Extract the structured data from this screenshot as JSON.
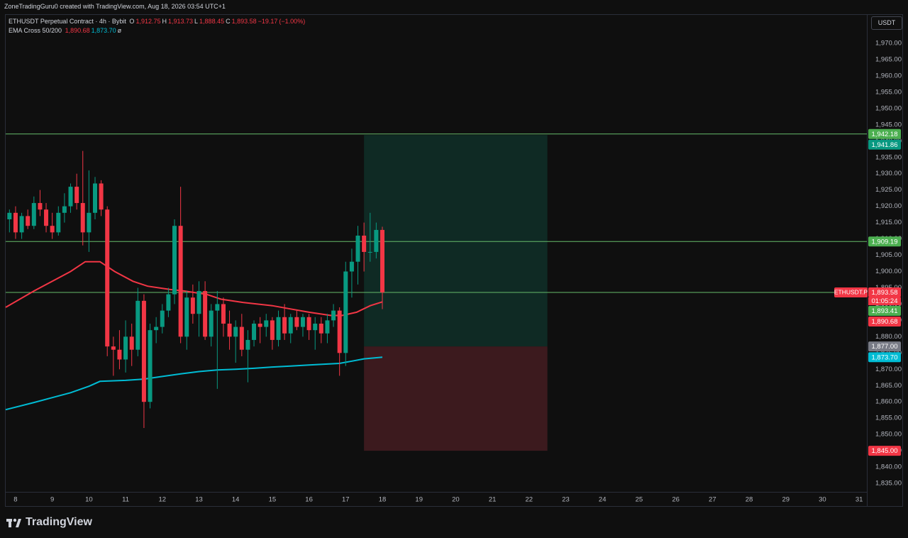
{
  "chart_data": {
    "type": "candlestick",
    "header": "ZoneTradingGuru0 created with TradingView.com, Aug 18, 2026 03:54 UTC+1",
    "symbol": "ETHUSDT Perpetual Contract · 4h · Bybit",
    "ohlc": [
      {
        "key": "O",
        "value": 1912.75,
        "label": "1,912.75"
      },
      {
        "key": "H",
        "value": 1913.73,
        "label": "1,913.73"
      },
      {
        "key": "L",
        "value": 1888.45,
        "label": "1,888.45"
      },
      {
        "key": "C",
        "value": 1893.58,
        "label": "1,893.58"
      }
    ],
    "change": {
      "value": -19.17,
      "label": "−19.17"
    },
    "change_pct": {
      "value": -1.0,
      "label": "(−1.00%)"
    },
    "indicator": "EMA Cross 50/200",
    "indicator_values": [
      {
        "value": 1890.68,
        "label": "1,890.68",
        "color": "#f23645"
      },
      {
        "value": 1873.7,
        "label": "1,873.70",
        "color": "#00bcd4"
      }
    ],
    "indicator_flag": "ø",
    "currency": "USDT",
    "brand": "TradingView",
    "up_color": "#089981",
    "down_color": "#f23645",
    "x": [
      7.833,
      8.0,
      8.167,
      8.333,
      8.5,
      8.667,
      8.833,
      9.0,
      9.167,
      9.333,
      9.5,
      9.667,
      9.833,
      10.0,
      10.167,
      10.333,
      10.5,
      10.667,
      10.833,
      11.0,
      11.167,
      11.333,
      11.5,
      11.667,
      11.833,
      12.0,
      12.167,
      12.333,
      12.5,
      12.667,
      12.833,
      13.0,
      13.167,
      13.333,
      13.5,
      13.667,
      13.833,
      14.0,
      14.167,
      14.333,
      14.5,
      14.667,
      14.833,
      15.0,
      15.167,
      15.333,
      15.5,
      15.667,
      15.833,
      16.0,
      16.167,
      16.333,
      16.5,
      16.667,
      16.833,
      17.0,
      17.167,
      17.333,
      17.5,
      17.667,
      17.833,
      18.0
    ],
    "open": [
      1916,
      1918,
      1912,
      1917,
      1914,
      1921,
      1919,
      1914,
      1912,
      1918,
      1920,
      1926,
      1921,
      1912,
      1918,
      1927,
      1919,
      1877,
      1876,
      1873,
      1880,
      1876,
      1891,
      1860,
      1882,
      1883,
      1888,
      1893,
      1914,
      1880,
      1892,
      1887,
      1894,
      1880,
      1888,
      1890,
      1884,
      1880,
      1883,
      1876,
      1879,
      1884,
      1883,
      1885,
      1879,
      1886,
      1881,
      1886,
      1883,
      1886,
      1882,
      1884,
      1881,
      1885,
      1888,
      1875,
      1900,
      1903,
      1911,
      1906,
      1906,
      1912.75
    ],
    "high": [
      1919,
      1920,
      1918,
      1919,
      1923,
      1925,
      1921,
      1918,
      1920,
      1924,
      1927,
      1930,
      1937,
      1931,
      1929,
      1928,
      1920,
      1880,
      1882,
      1885,
      1884,
      1895,
      1893,
      1884,
      1886,
      1890,
      1895,
      1916,
      1926,
      1894,
      1896,
      1897,
      1897,
      1890,
      1894,
      1892,
      1888,
      1885,
      1887,
      1882,
      1885,
      1886,
      1887,
      1886,
      1888,
      1890,
      1887,
      1888,
      1887,
      1887,
      1886,
      1886,
      1887,
      1890,
      1889,
      1903,
      1907,
      1914,
      1915,
      1918,
      1915,
      1913.73
    ],
    "low": [
      1912,
      1910,
      1910,
      1913,
      1913,
      1917,
      1912,
      1910,
      1911,
      1915,
      1918,
      1919,
      1908,
      1906,
      1916,
      1917,
      1874,
      1868,
      1870,
      1869,
      1871,
      1874,
      1852,
      1858,
      1878,
      1881,
      1886,
      1890,
      1878,
      1876,
      1884,
      1880,
      1879,
      1877,
      1864,
      1880,
      1876,
      1872,
      1874,
      1866,
      1877,
      1878,
      1880,
      1876,
      1877,
      1879,
      1878,
      1882,
      1880,
      1879,
      1876,
      1878,
      1878,
      1883,
      1868,
      1871,
      1892,
      1896,
      1900,
      1903,
      1904,
      1888.45
    ],
    "close": [
      1918,
      1912,
      1917,
      1914,
      1921,
      1919,
      1914,
      1912,
      1918,
      1920,
      1926,
      1921,
      1912,
      1918,
      1927,
      1919,
      1877,
      1876,
      1873,
      1880,
      1876,
      1891,
      1860,
      1882,
      1883,
      1888,
      1893,
      1914,
      1880,
      1892,
      1887,
      1894,
      1880,
      1888,
      1890,
      1884,
      1880,
      1883,
      1876,
      1879,
      1884,
      1883,
      1885,
      1879,
      1886,
      1881,
      1886,
      1883,
      1886,
      1882,
      1884,
      1881,
      1885,
      1888,
      1875,
      1900,
      1903,
      1911,
      1906,
      1906,
      1912.75,
      1893.58
    ],
    "lines": [
      {
        "color": "#f23645",
        "x": [
          7.73,
          8.5,
          9.0,
          9.5,
          9.9,
          10.3,
          10.7,
          11.2,
          11.6,
          12.2,
          12.6,
          13.2,
          13.6,
          14.2,
          15.0,
          15.5,
          16.0,
          16.6,
          16.9,
          17.3,
          17.67,
          18.0
        ],
        "values": [
          1889,
          1894,
          1897,
          1900,
          1903,
          1903,
          1900,
          1897,
          1895.5,
          1894.5,
          1894,
          1893,
          1891.5,
          1890.5,
          1889.5,
          1888.5,
          1887.5,
          1886.5,
          1886.5,
          1887.5,
          1889.5,
          1890.68
        ]
      },
      {
        "color": "#00bcd4",
        "x": [
          7.73,
          8.5,
          9.0,
          9.5,
          10.0,
          10.3,
          11.0,
          11.5,
          12.0,
          12.5,
          13.0,
          13.5,
          14.0,
          14.5,
          15.0,
          15.5,
          16.0,
          16.5,
          16.83,
          17.17,
          17.5,
          18.0
        ],
        "values": [
          1857.6,
          1859.8,
          1861.3,
          1862.8,
          1864.8,
          1866.3,
          1866.6,
          1867.0,
          1867.8,
          1868.6,
          1869.3,
          1869.8,
          1870.0,
          1870.3,
          1870.7,
          1871.0,
          1871.3,
          1871.6,
          1871.8,
          1872.5,
          1873.2,
          1873.7
        ]
      }
    ],
    "hlines": [
      {
        "value": 1942.18,
        "color": "#66bb6a"
      },
      {
        "value": 1909.19,
        "color": "#66bb6a"
      },
      {
        "value": 1893.58,
        "color": "#66bb6a"
      }
    ],
    "position": {
      "x": [
        17.5,
        22.5
      ],
      "entry": 1877.0,
      "target": 1941.86,
      "stop": 1845.0,
      "profit_color": "#0f2a24",
      "loss_color": "#3c1a1e"
    },
    "price_labels": [
      {
        "value": 1942.18,
        "label": "1,942.18",
        "color": "#4caf50"
      },
      {
        "value": 1941.86,
        "label": "1,941.86",
        "color": "#089981"
      },
      {
        "value": 1909.19,
        "label": "1,909.19",
        "color": "#4caf50"
      },
      {
        "value": 1893.58,
        "label": "1,893.58",
        "color": "#f23645"
      },
      {
        "value": 1893.41,
        "label": "1,893.41",
        "color": "#4caf50"
      },
      {
        "value": 1890.68,
        "label": "1,890.68",
        "color": "#f23645"
      },
      {
        "value": 1877.0,
        "label": "1,877.00",
        "color": "#787b86"
      },
      {
        "value": 1873.7,
        "label": "1,873.70",
        "color": "#00bcd4"
      },
      {
        "value": 1845.0,
        "label": "1,845.00",
        "color": "#f23645"
      }
    ],
    "last_tag": "ETHUSDT.P",
    "countdown": "01:05:24",
    "xlim": [
      7.73,
      31.21
    ],
    "xticks": [
      8,
      9,
      10,
      11,
      12,
      13,
      14,
      15,
      16,
      17,
      18,
      19,
      20,
      21,
      22,
      23,
      24,
      25,
      26,
      27,
      28,
      29,
      30,
      31
    ],
    "ylim": [
      1832.39,
      1978.93
    ],
    "yticks": [
      {
        "value": 1835,
        "label": "1,835.00"
      },
      {
        "value": 1840,
        "label": "1,840.00"
      },
      {
        "value": 1845,
        "label": "1,845.00"
      },
      {
        "value": 1850,
        "label": "1,850.00"
      },
      {
        "value": 1855,
        "label": "1,855.00"
      },
      {
        "value": 1860,
        "label": "1,860.00"
      },
      {
        "value": 1865,
        "label": "1,865.00"
      },
      {
        "value": 1870,
        "label": "1,870.00"
      },
      {
        "value": 1875,
        "label": "1,875.00"
      },
      {
        "value": 1880,
        "label": "1,880.00"
      },
      {
        "value": 1885,
        "label": "1,885.00"
      },
      {
        "value": 1890,
        "label": "1,890.00"
      },
      {
        "value": 1895,
        "label": "1,895.00"
      },
      {
        "value": 1900,
        "label": "1,900.00"
      },
      {
        "value": 1905,
        "label": "1,905.00"
      },
      {
        "value": 1910,
        "label": "1,910.00"
      },
      {
        "value": 1915,
        "label": "1,915.00"
      },
      {
        "value": 1920,
        "label": "1,920.00"
      },
      {
        "value": 1925,
        "label": "1,925.00"
      },
      {
        "value": 1930,
        "label": "1,930.00"
      },
      {
        "value": 1935,
        "label": "1,935.00"
      },
      {
        "value": 1940,
        "label": "1,940.00"
      },
      {
        "value": 1945,
        "label": "1,945.00"
      },
      {
        "value": 1950,
        "label": "1,950.00"
      },
      {
        "value": 1955,
        "label": "1,955.00"
      },
      {
        "value": 1960,
        "label": "1,960.00"
      },
      {
        "value": 1965,
        "label": "1,965.00"
      },
      {
        "value": 1970,
        "label": "1,970.00"
      }
    ]
  }
}
